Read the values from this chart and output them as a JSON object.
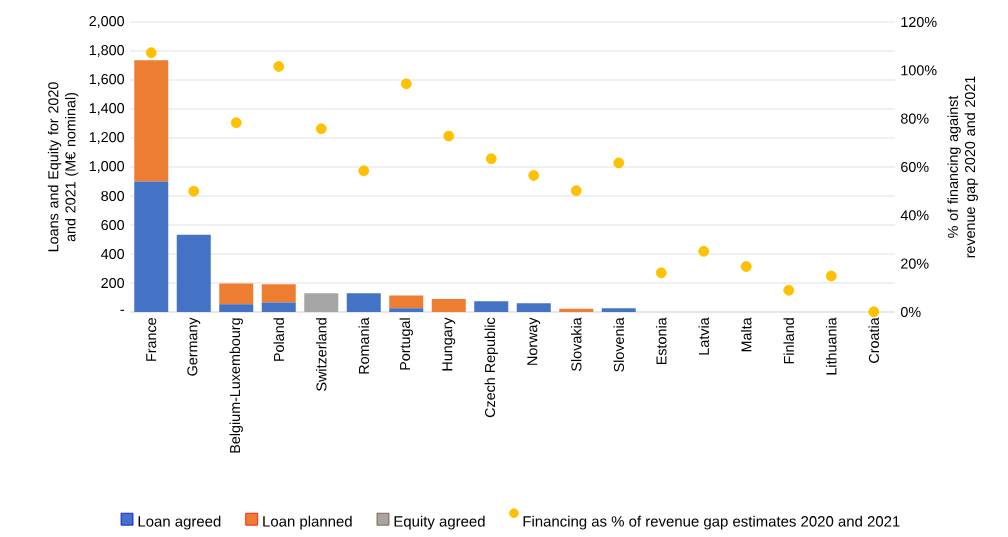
{
  "chart_data": {
    "type": "bar",
    "stacked": true,
    "categories": [
      "France",
      "Germany",
      "Belgium-Luxembourg",
      "Poland",
      "Switzerland",
      "Romania",
      "Portugal",
      "Hungary",
      "Czech Republic",
      "Norway",
      "Slovakia",
      "Slovenia",
      "Estonia",
      "Latvia",
      "Malta",
      "Finland",
      "Lithuania",
      "Croatia"
    ],
    "series": [
      {
        "name": "Loan agreed",
        "color": "#4472c4",
        "values": [
          900,
          533,
          53,
          65,
          0,
          129,
          25,
          0,
          74,
          60,
          0,
          25,
          0,
          0,
          0,
          0,
          0,
          0
        ]
      },
      {
        "name": "Loan planned",
        "color": "#ed7d31",
        "values": [
          837,
          0,
          143,
          126,
          0,
          0,
          88,
          90,
          0,
          0,
          23,
          0,
          0,
          0,
          0,
          0,
          0,
          0
        ]
      },
      {
        "name": "Equity agreed",
        "color": "#a5a5a5",
        "values": [
          0,
          0,
          0,
          0,
          129,
          0,
          0,
          0,
          0,
          0,
          0,
          0,
          0,
          0,
          0,
          0,
          0,
          0
        ]
      },
      {
        "name": "Financing as % of revenue gap estimates 2020 and 2021",
        "type": "scatter",
        "axis": "y2",
        "color": "#ffc000",
        "values": [
          107.3,
          50.0,
          78.3,
          101.6,
          75.8,
          58.4,
          94.4,
          72.8,
          63.4,
          56.5,
          50.2,
          61.7,
          16.2,
          25.1,
          18.8,
          9.0,
          14.9,
          0.1
        ]
      }
    ],
    "ylabel": "Loans and Equity for 2020 and 2021 (M€ nominal)",
    "y2label": "% of financing against revenue gap 2020 and 2021",
    "ylim": [
      0,
      2000
    ],
    "yticks": [
      {
        "value": 0,
        "label": "-"
      },
      {
        "value": 200,
        "label": "200"
      },
      {
        "value": 400,
        "label": "400"
      },
      {
        "value": 600,
        "label": "600"
      },
      {
        "value": 800,
        "label": "800"
      },
      {
        "value": 1000,
        "label": "1,000"
      },
      {
        "value": 1200,
        "label": "1,200"
      },
      {
        "value": 1400,
        "label": "1,400"
      },
      {
        "value": 1600,
        "label": "1,600"
      },
      {
        "value": 1800,
        "label": "1,800"
      },
      {
        "value": 2000,
        "label": "2,000"
      }
    ],
    "y2lim": [
      0,
      120
    ],
    "y2ticks": [
      {
        "value": 0,
        "label": "0%"
      },
      {
        "value": 20,
        "label": "20%"
      },
      {
        "value": 40,
        "label": "40%"
      },
      {
        "value": 60,
        "label": "60%"
      },
      {
        "value": 80,
        "label": "80%"
      },
      {
        "value": 100,
        "label": "100%"
      },
      {
        "value": 120,
        "label": "120%"
      }
    ],
    "grid": "y",
    "legend": "bottom"
  }
}
